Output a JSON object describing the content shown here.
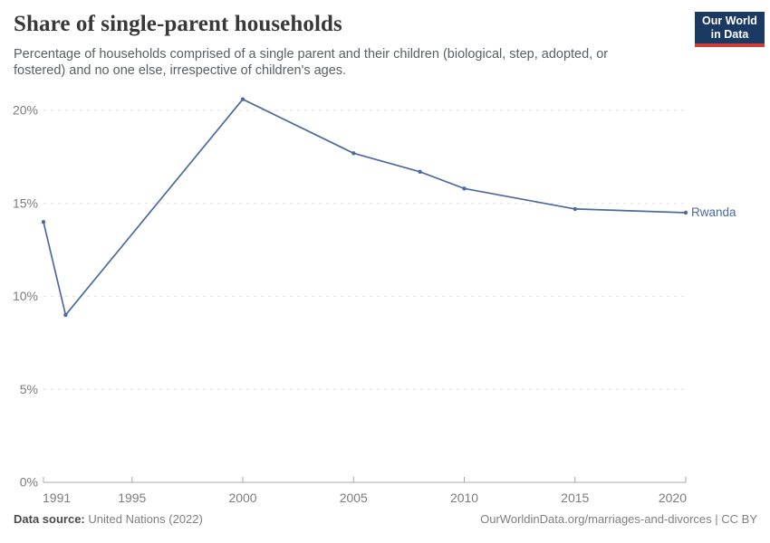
{
  "header": {
    "title": "Share of single-parent households",
    "subtitle": "Percentage of households comprised of a single parent and their children (biological, step, adopted, or fostered) and no one else, irrespective of children's ages.",
    "logo": {
      "line1": "Our World",
      "line2": "in Data"
    }
  },
  "chart_data": {
    "type": "line",
    "title": "Share of single-parent households",
    "entity": "Rwanda",
    "unit": "%",
    "x": [
      1991,
      1992,
      2000,
      2005,
      2008,
      2010,
      2015,
      2020
    ],
    "values": [
      14.0,
      9.0,
      20.6,
      17.7,
      16.7,
      15.8,
      14.7,
      14.5
    ],
    "xlim": [
      1991,
      2020
    ],
    "ylim": [
      0,
      20
    ],
    "x_ticks": [
      1991,
      1995,
      2000,
      2005,
      2010,
      2015,
      2020
    ],
    "y_ticks": [
      0,
      5,
      10,
      15,
      20
    ],
    "y_tick_suffix": "%",
    "grid": "horizontal-dashed",
    "legend_position": "end-of-line-label",
    "line_color": "#4c6a9c",
    "gridline_color": "#e2e2e2",
    "axis_color": "#a7a7a7",
    "tick_label_color": "#7c7c7c"
  },
  "footer": {
    "source_label": "Data source:",
    "source_value": "United Nations (2022)",
    "attribution": "OurWorldinData.org/marriages-and-divorces | CC BY"
  },
  "colors": {
    "background": "#ffffff",
    "title": "#383838",
    "subtitle": "#595f63",
    "logo_navy": "#1a3a63",
    "logo_red": "#cf3e36",
    "series_blue": "#4c6a9c"
  }
}
